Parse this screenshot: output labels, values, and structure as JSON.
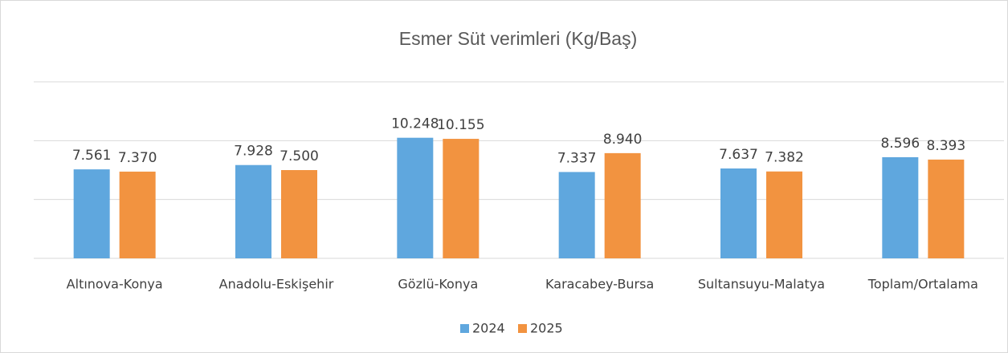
{
  "chart_data": {
    "type": "bar",
    "title": "Esmer Süt verimleri (Kg/Baş)",
    "categories": [
      "Altınova-Konya",
      "Anadolu-Eskişehir",
      "Gözlü-Konya",
      "Karacabey-Bursa",
      "Sultansuyu-Malatya",
      "Toplam/Ortalama"
    ],
    "series": [
      {
        "name": "2024",
        "color": "#5fa7de",
        "values": [
          7561,
          7928,
          10248,
          7337,
          7637,
          8596
        ],
        "value_labels": [
          "7.561",
          "7.928",
          "10.248",
          "7.337",
          "7.637",
          "8.596"
        ]
      },
      {
        "name": "2025",
        "color": "#f29340",
        "values": [
          7370,
          7500,
          10155,
          8940,
          7382,
          8393
        ],
        "value_labels": [
          "7.370",
          "7.500",
          "10.155",
          "8.940",
          "7.382",
          "8.393"
        ]
      }
    ],
    "ylim": [
      0,
      15000
    ],
    "yticks": [
      0,
      5000,
      10000,
      15000
    ],
    "grid": true,
    "legend": "bottom"
  }
}
